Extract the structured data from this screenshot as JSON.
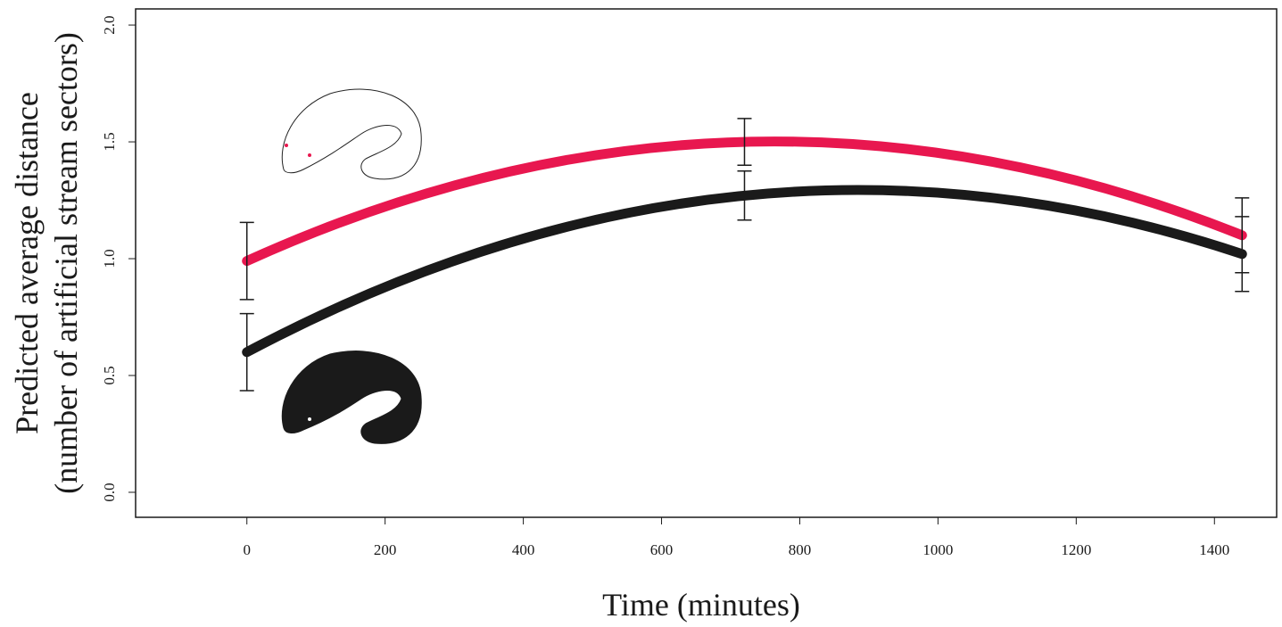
{
  "chart_data": {
    "type": "line",
    "x": [
      0,
      720,
      1440
    ],
    "series": [
      {
        "color": "#e8174f",
        "values": [
          0.99,
          1.5,
          1.1
        ],
        "errors": [
          0.165,
          0.1,
          0.16
        ]
      },
      {
        "color": "#1a1a1a",
        "values": [
          0.6,
          1.27,
          1.02
        ],
        "errors": [
          0.165,
          0.105,
          0.16
        ]
      }
    ],
    "xlim": [
      -161,
      1490
    ],
    "ylim": [
      -0.107,
      2.069
    ],
    "xticks": [
      0,
      200,
      400,
      600,
      800,
      1000,
      1200,
      1400
    ],
    "yticks": [
      {
        "value": 0,
        "label": "0.0"
      },
      0.5,
      {
        "value": 1,
        "label": "1.0"
      },
      1.5,
      {
        "value": 2,
        "label": "2.0"
      }
    ],
    "xlabel": "Time (minutes)",
    "ylabel": [
      "Predicted average distance",
      "(number of artificial stream sectors)"
    ]
  }
}
